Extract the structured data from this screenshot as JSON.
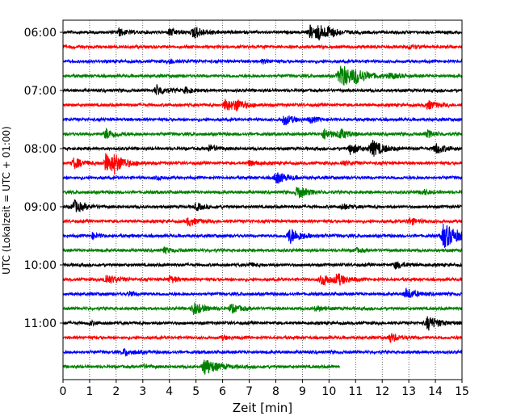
{
  "chart_data": {
    "type": "line",
    "title": "",
    "xlabel": "Zeit  [min]",
    "ylabel": "UTC (Lokalzeit = UTC + 01:00)",
    "xlim": [
      0,
      15
    ],
    "x_ticks": [
      0,
      1,
      2,
      3,
      4,
      5,
      6,
      7,
      8,
      9,
      10,
      11,
      12,
      13,
      14,
      15
    ],
    "x_tick_labels": [
      "0",
      "1",
      "2",
      "3",
      "4",
      "5",
      "6",
      "7",
      "8",
      "9",
      "10",
      "11",
      "12",
      "13",
      "14",
      "15"
    ],
    "y_ticks": [
      "06:00",
      "07:00",
      "08:00",
      "09:00",
      "10:00",
      "11:00"
    ],
    "grid": "vertical dotted lines at each minute",
    "legend": "none",
    "trace_interval_minutes": 15,
    "color_cycle": [
      "#000000",
      "#ff0000",
      "#0000ff",
      "#008000"
    ],
    "series": [
      {
        "start": "06:00",
        "end_min": 15,
        "events": [
          [
            2.1,
            0.4
          ],
          [
            4.0,
            0.4
          ],
          [
            4.9,
            0.7
          ],
          [
            9.3,
            0.8
          ],
          [
            9.6,
            0.6
          ],
          [
            10.0,
            0.4
          ]
        ]
      },
      {
        "start": "06:15",
        "end_min": 15,
        "events": [
          [
            13.0,
            0.2
          ]
        ]
      },
      {
        "start": "06:30",
        "end_min": 15,
        "events": [
          [
            4.0,
            0.25
          ],
          [
            7.5,
            0.2
          ]
        ]
      },
      {
        "start": "06:45",
        "end_min": 15,
        "events": [
          [
            10.4,
            1.4
          ],
          [
            11.0,
            0.5
          ],
          [
            12.3,
            0.3
          ]
        ]
      },
      {
        "start": "07:00",
        "end_min": 15,
        "events": [
          [
            3.5,
            0.6
          ],
          [
            4.6,
            0.3
          ]
        ]
      },
      {
        "start": "07:15",
        "end_min": 15,
        "events": [
          [
            6.1,
            0.7
          ],
          [
            6.5,
            0.5
          ],
          [
            13.7,
            0.5
          ]
        ]
      },
      {
        "start": "07:30",
        "end_min": 15,
        "events": [
          [
            8.3,
            0.6
          ],
          [
            9.3,
            0.3
          ]
        ]
      },
      {
        "start": "07:45",
        "end_min": 15,
        "events": [
          [
            1.6,
            0.6
          ],
          [
            9.8,
            0.6
          ],
          [
            10.4,
            0.5
          ],
          [
            13.7,
            0.4
          ]
        ]
      },
      {
        "start": "08:00",
        "end_min": 15,
        "events": [
          [
            5.5,
            0.4
          ],
          [
            10.8,
            0.6
          ],
          [
            11.6,
            0.9
          ],
          [
            14.0,
            0.6
          ]
        ]
      },
      {
        "start": "08:15",
        "end_min": 15,
        "events": [
          [
            0.4,
            0.6
          ],
          [
            1.6,
            1.0
          ],
          [
            1.9,
            0.7
          ],
          [
            7.0,
            0.3
          ],
          [
            10.5,
            0.3
          ]
        ]
      },
      {
        "start": "08:30",
        "end_min": 15,
        "events": [
          [
            8.0,
            0.7
          ],
          [
            3.5,
            0.2
          ]
        ]
      },
      {
        "start": "08:45",
        "end_min": 15,
        "events": [
          [
            8.8,
            0.7
          ],
          [
            13.5,
            0.3
          ]
        ]
      },
      {
        "start": "09:00",
        "end_min": 15,
        "events": [
          [
            0.4,
            0.7
          ],
          [
            5.0,
            0.4
          ],
          [
            10.5,
            0.3
          ]
        ]
      },
      {
        "start": "09:15",
        "end_min": 15,
        "events": [
          [
            4.7,
            0.5
          ],
          [
            13.0,
            0.4
          ]
        ]
      },
      {
        "start": "09:30",
        "end_min": 15,
        "events": [
          [
            8.5,
            0.9
          ],
          [
            14.3,
            1.4
          ],
          [
            1.1,
            0.3
          ]
        ]
      },
      {
        "start": "09:45",
        "end_min": 15,
        "events": [
          [
            3.8,
            0.3
          ],
          [
            11.0,
            0.2
          ]
        ]
      },
      {
        "start": "10:00",
        "end_min": 15,
        "events": [
          [
            12.5,
            0.4
          ],
          [
            7.0,
            0.2
          ]
        ]
      },
      {
        "start": "10:15",
        "end_min": 15,
        "events": [
          [
            1.6,
            0.6
          ],
          [
            4.0,
            0.4
          ],
          [
            9.7,
            0.7
          ],
          [
            10.3,
            0.6
          ]
        ]
      },
      {
        "start": "10:30",
        "end_min": 15,
        "events": [
          [
            12.9,
            0.6
          ],
          [
            2.5,
            0.2
          ]
        ]
      },
      {
        "start": "10:45",
        "end_min": 15,
        "events": [
          [
            4.9,
            0.7
          ],
          [
            6.3,
            0.5
          ],
          [
            9.5,
            0.3
          ]
        ]
      },
      {
        "start": "11:00",
        "end_min": 15,
        "events": [
          [
            13.7,
            0.8
          ],
          [
            1.0,
            0.2
          ]
        ]
      },
      {
        "start": "11:15",
        "end_min": 15,
        "events": [
          [
            12.3,
            0.5
          ],
          [
            6.0,
            0.2
          ]
        ]
      },
      {
        "start": "11:30",
        "end_min": 15,
        "events": [
          [
            2.3,
            0.4
          ]
        ]
      },
      {
        "start": "11:45",
        "end_min": 10.4,
        "events": [
          [
            5.3,
            1.0
          ],
          [
            3.0,
            0.2
          ]
        ]
      }
    ]
  }
}
